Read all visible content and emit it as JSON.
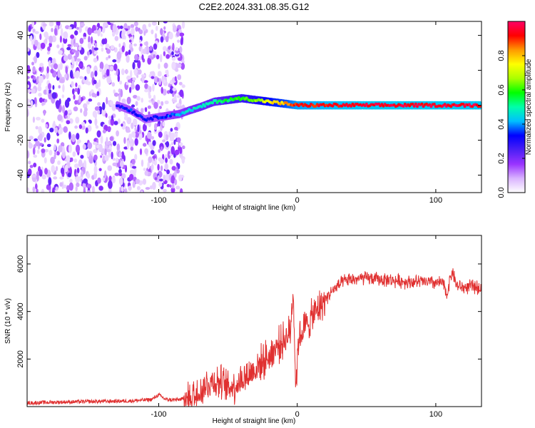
{
  "title": "C2E2.2024.331.08.35.G12",
  "colors": {
    "snr_line": "#e03030",
    "axes": "#000000"
  },
  "chart_data": [
    {
      "type": "heatmap",
      "title": "C2E2.2024.331.08.35.G12",
      "xlabel": "Height of straight line (km)",
      "ylabel": "Frequency (Hz)",
      "xlim": [
        -195,
        133
      ],
      "ylim": [
        -50,
        48
      ],
      "x_ticks": [
        -100,
        0,
        100
      ],
      "y_ticks": [
        -40,
        -20,
        0,
        20,
        40
      ],
      "colorbar": {
        "label": "Normalized spectral amplitude",
        "range": [
          0,
          1
        ],
        "ticks": [
          "0.0",
          "0.2",
          "0.4",
          "0.6",
          "0.8"
        ],
        "colormap": [
          "#ffffff",
          "#d9b3ff",
          "#9933ff",
          "#4b1ff5",
          "#0000ff",
          "#00bfff",
          "#00ffaa",
          "#00ff00",
          "#aaff00",
          "#ffff00",
          "#ff9900",
          "#ff0000",
          "#ff0066"
        ]
      },
      "noise_region_x": [
        -195,
        -82
      ],
      "ridge": [
        {
          "x": -130,
          "f": 0,
          "amp": 0.3
        },
        {
          "x": -120,
          "f": -3,
          "amp": 0.35
        },
        {
          "x": -110,
          "f": -8,
          "amp": 0.3
        },
        {
          "x": -85,
          "f": -5,
          "amp": 0.4
        },
        {
          "x": -78,
          "f": -3,
          "amp": 0.45
        },
        {
          "x": -70,
          "f": -1,
          "amp": 0.48
        },
        {
          "x": -60,
          "f": 2,
          "amp": 0.5
        },
        {
          "x": -50,
          "f": 3,
          "amp": 0.55
        },
        {
          "x": -40,
          "f": 4,
          "amp": 0.6
        },
        {
          "x": -30,
          "f": 3,
          "amp": 0.65
        },
        {
          "x": -20,
          "f": 2,
          "amp": 0.75
        },
        {
          "x": -10,
          "f": 1,
          "amp": 0.8
        },
        {
          "x": 0,
          "f": 0,
          "amp": 0.9
        },
        {
          "x": 50,
          "f": 0,
          "amp": 0.95
        },
        {
          "x": 100,
          "f": 0,
          "amp": 0.95
        },
        {
          "x": 133,
          "f": 0,
          "amp": 0.95
        }
      ]
    },
    {
      "type": "line",
      "xlabel": "Height of straight line (km)",
      "ylabel": "SNR (10 * v/v)",
      "xlim": [
        -195,
        133
      ],
      "ylim": [
        0,
        7200
      ],
      "x_ticks": [
        -100,
        0,
        100
      ],
      "y_ticks": [
        2000,
        4000,
        6000
      ],
      "series": [
        {
          "x": [
            -195,
            -180,
            -160,
            -140,
            -120,
            -105,
            -100,
            -95,
            -90,
            -85,
            -80,
            -75,
            -70,
            -65,
            -60,
            -55,
            -50,
            -45,
            -40,
            -35,
            -30,
            -25,
            -20,
            -15,
            -10,
            -5,
            -3,
            -1,
            1,
            5,
            10,
            15,
            20,
            25,
            30,
            35,
            40,
            50,
            60,
            70,
            80,
            90,
            100,
            105,
            108,
            110,
            112,
            115,
            120,
            125,
            133
          ],
          "y": [
            150,
            180,
            200,
            220,
            240,
            300,
            500,
            300,
            280,
            300,
            350,
            450,
            700,
            950,
            1100,
            1000,
            800,
            900,
            1150,
            1350,
            1600,
            1900,
            2150,
            2500,
            2800,
            3100,
            5000,
            800,
            2900,
            3300,
            3700,
            4100,
            4500,
            4850,
            5100,
            5300,
            5350,
            5400,
            5350,
            5300,
            5250,
            5250,
            5200,
            5200,
            4700,
            5300,
            5700,
            5100,
            5000,
            5050,
            5000
          ]
        }
      ]
    }
  ]
}
